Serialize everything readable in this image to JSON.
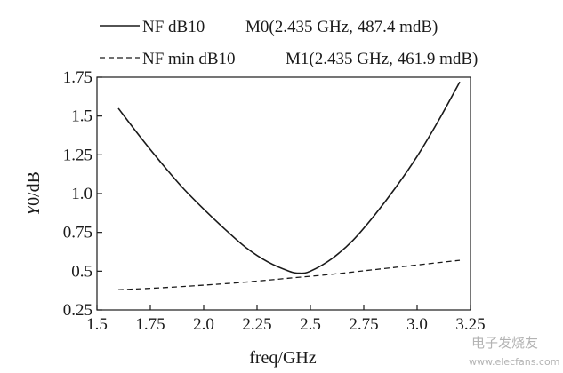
{
  "chart_data": {
    "type": "line",
    "xlabel": "freq/GHz",
    "ylabel_italic": "Y",
    "ylabel_rest": "0/dB",
    "xlim": [
      1.5,
      3.25
    ],
    "ylim": [
      0.25,
      1.75
    ],
    "x_ticks": [
      1.5,
      1.75,
      2.0,
      2.25,
      2.5,
      2.75,
      3.0,
      3.25
    ],
    "x_tick_labels": [
      "1.5",
      "1.75",
      "2.0",
      "2.25",
      "2.5",
      "2.75",
      "3.0",
      "3.25"
    ],
    "y_ticks": [
      0.25,
      0.5,
      0.75,
      1.0,
      1.25,
      1.5,
      1.75
    ],
    "y_tick_labels": [
      "0.25",
      "0.5",
      "0.75",
      "1.0",
      "1.25",
      "1.5",
      "1.75"
    ],
    "grid": false,
    "legend_position": "top",
    "series": [
      {
        "name": "NF dB10",
        "marker_label": "M0(2.435 GHz, 487.4 mdB)",
        "style": "solid",
        "x": [
          1.6,
          1.7,
          1.8,
          1.9,
          2.0,
          2.1,
          2.2,
          2.3,
          2.4,
          2.45,
          2.5,
          2.6,
          2.7,
          2.8,
          2.9,
          3.0,
          3.1,
          3.2
        ],
        "values": [
          1.55,
          1.37,
          1.2,
          1.04,
          0.9,
          0.77,
          0.65,
          0.56,
          0.5,
          0.487,
          0.5,
          0.58,
          0.7,
          0.86,
          1.04,
          1.24,
          1.47,
          1.72
        ]
      },
      {
        "name": "NF min dB10",
        "marker_label": "M1(2.435 GHz, 461.9 mdB)",
        "style": "dashed",
        "x": [
          1.6,
          1.8,
          2.0,
          2.2,
          2.4,
          2.6,
          2.8,
          3.0,
          3.2
        ],
        "values": [
          0.38,
          0.393,
          0.41,
          0.43,
          0.455,
          0.48,
          0.51,
          0.54,
          0.57
        ]
      }
    ]
  },
  "watermark": {
    "line1": "电子发烧友",
    "line2": "www.elecfans.com"
  }
}
